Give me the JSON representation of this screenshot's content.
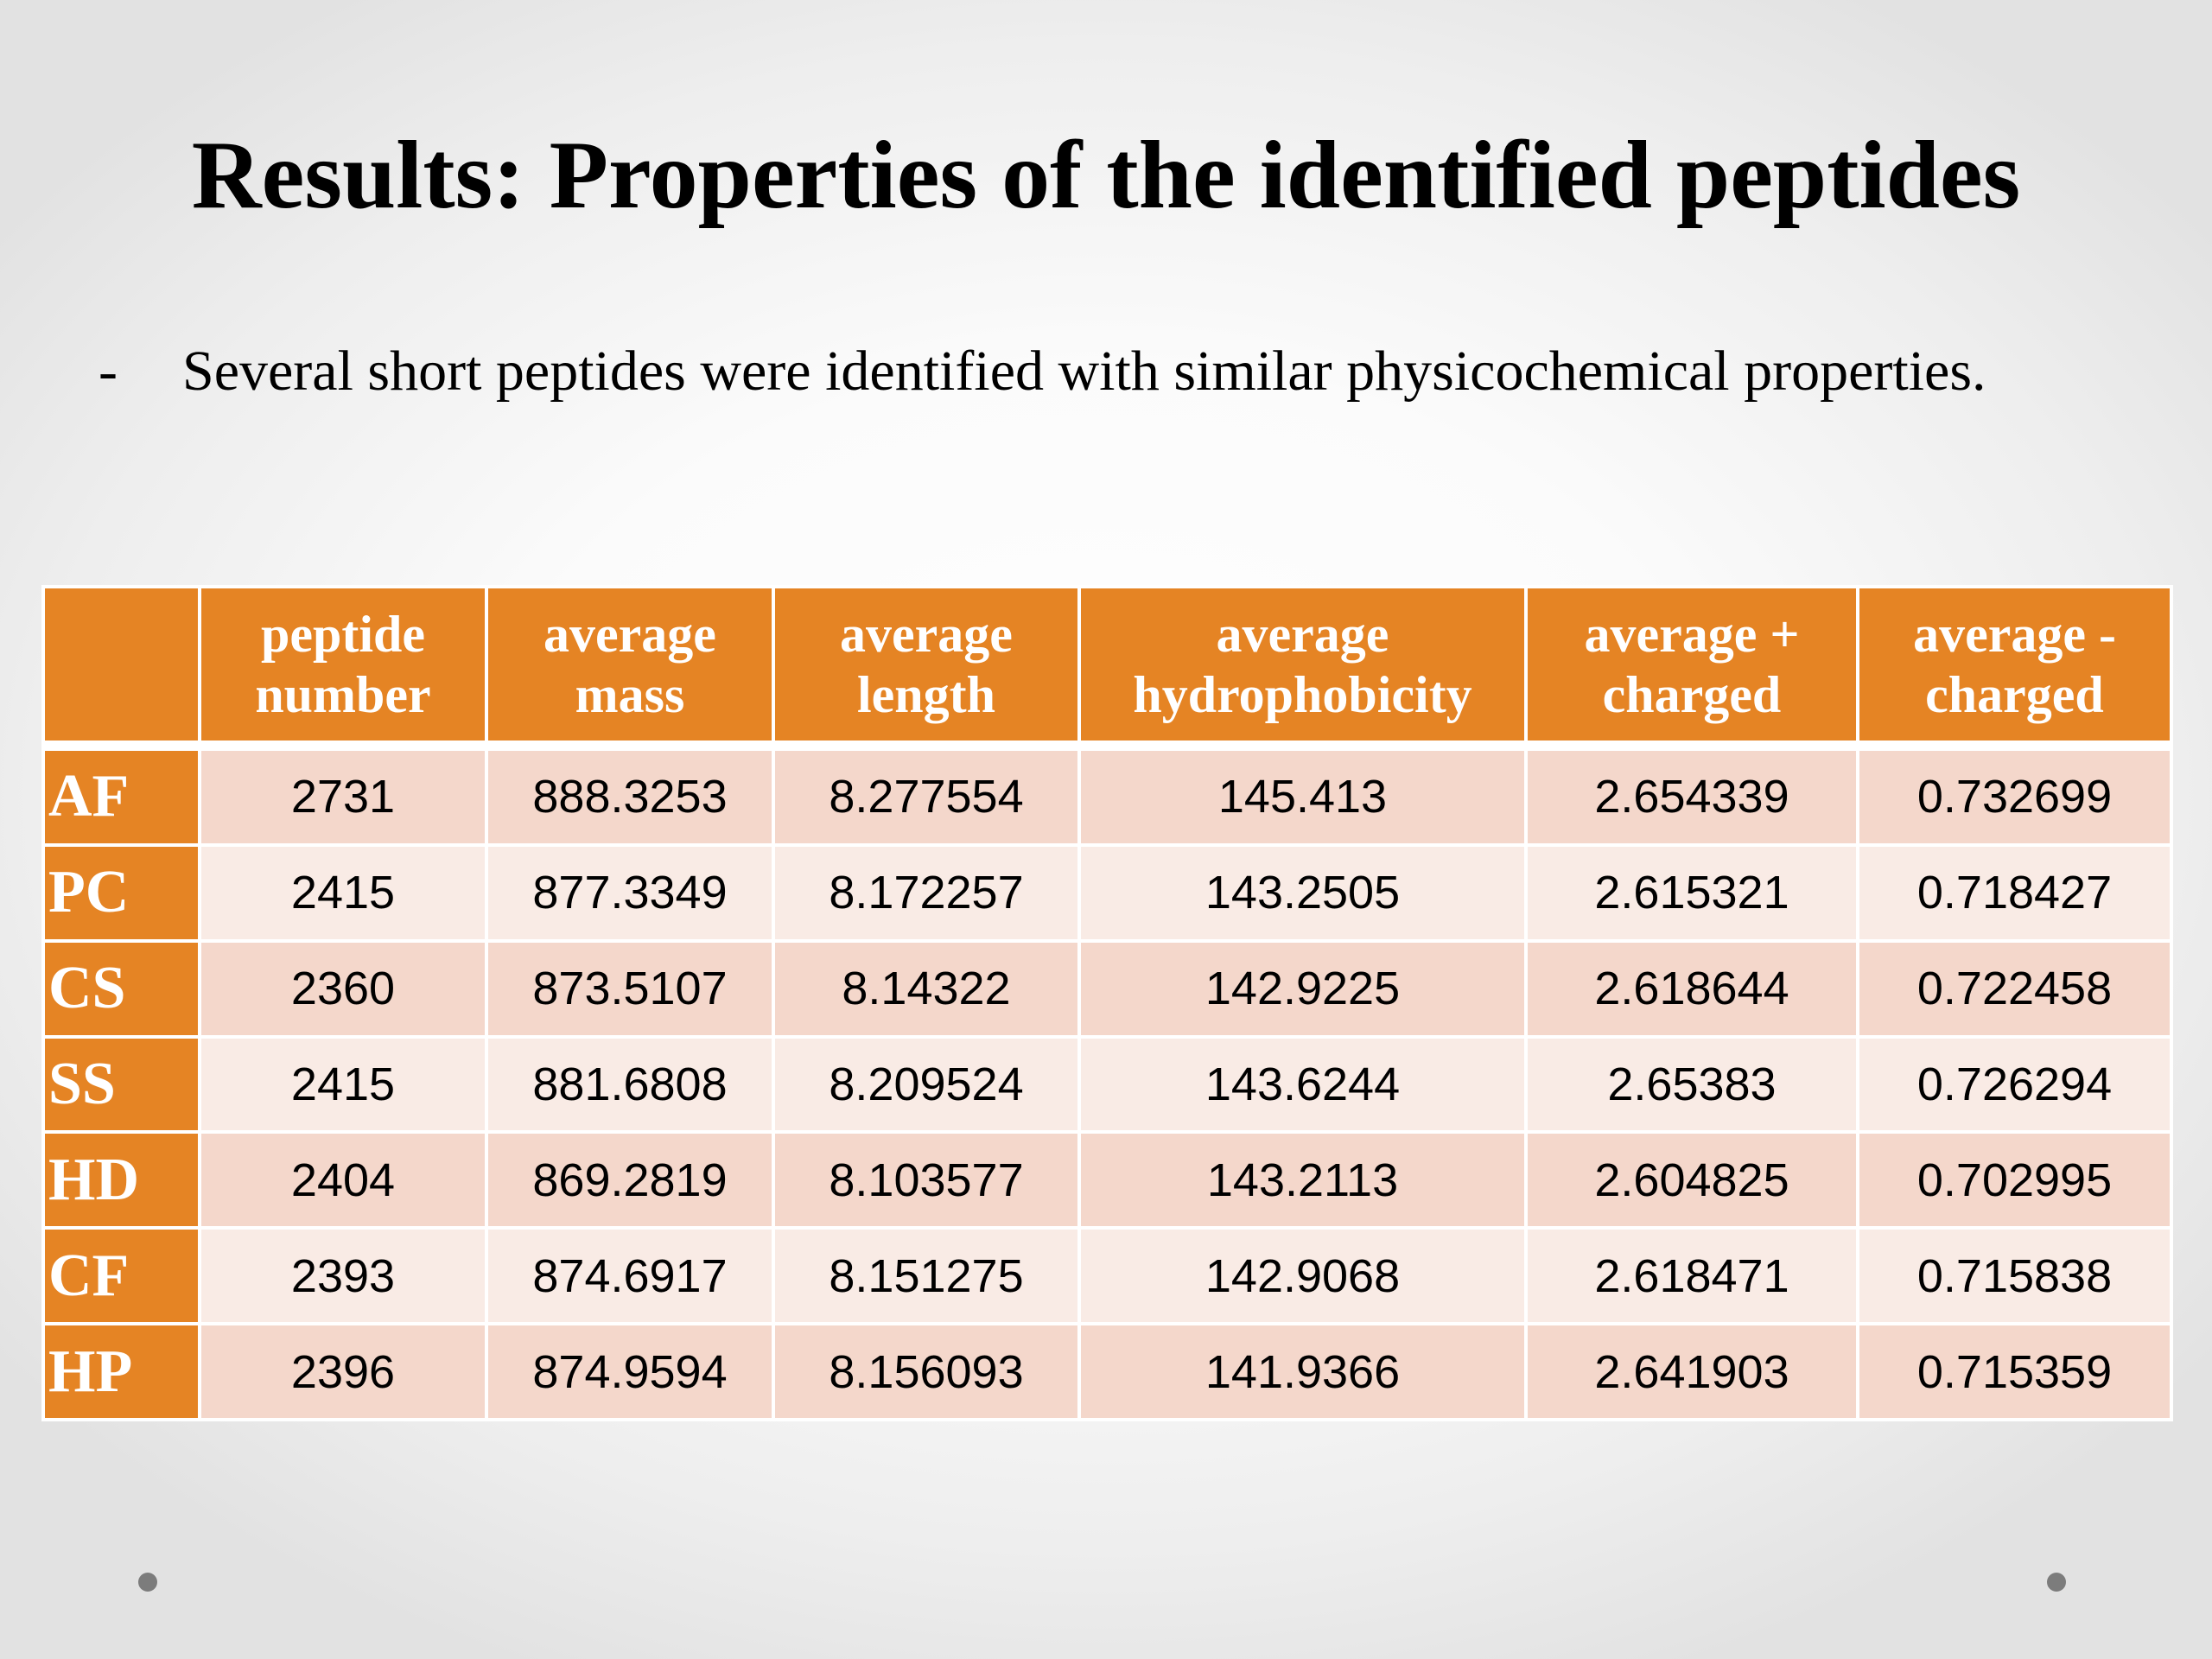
{
  "slide": {
    "title": "Results: Properties of the identified peptides",
    "bullet_marker": "-",
    "bullet_text": "Several short peptides were identified with similar physicochemical properties."
  },
  "table": {
    "headers": [
      "",
      [
        "peptide",
        "number"
      ],
      [
        "average",
        "mass"
      ],
      [
        "average",
        "length"
      ],
      [
        "average",
        "hydrophobicity"
      ],
      [
        "average +",
        "charged"
      ],
      [
        "average -",
        "charged"
      ]
    ],
    "rows": [
      {
        "label": "AF",
        "values": [
          "2731",
          "888.3253",
          "8.277554",
          "145.413",
          "2.654339",
          "0.732699"
        ]
      },
      {
        "label": "PC",
        "values": [
          "2415",
          "877.3349",
          "8.172257",
          "143.2505",
          "2.615321",
          "0.718427"
        ]
      },
      {
        "label": "CS",
        "values": [
          "2360",
          "873.5107",
          "8.14322",
          "142.9225",
          "2.618644",
          "0.722458"
        ]
      },
      {
        "label": "SS",
        "values": [
          "2415",
          "881.6808",
          "8.209524",
          "143.6244",
          "2.65383",
          "0.726294"
        ]
      },
      {
        "label": "HD",
        "values": [
          "2404",
          "869.2819",
          "8.103577",
          "143.2113",
          "2.604825",
          "0.702995"
        ]
      },
      {
        "label": "CF",
        "values": [
          "2393",
          "874.6917",
          "8.151275",
          "142.9068",
          "2.618471",
          "0.715838"
        ]
      },
      {
        "label": "HP",
        "values": [
          "2396",
          "874.9594",
          "8.156093",
          "141.9366",
          "2.641903",
          "0.715359"
        ]
      }
    ]
  },
  "colors": {
    "header_orange": "#e58424",
    "row_odd": "#f4d7cb",
    "row_even": "#f9ebe5",
    "nav_dot": "#7c7c7c"
  }
}
